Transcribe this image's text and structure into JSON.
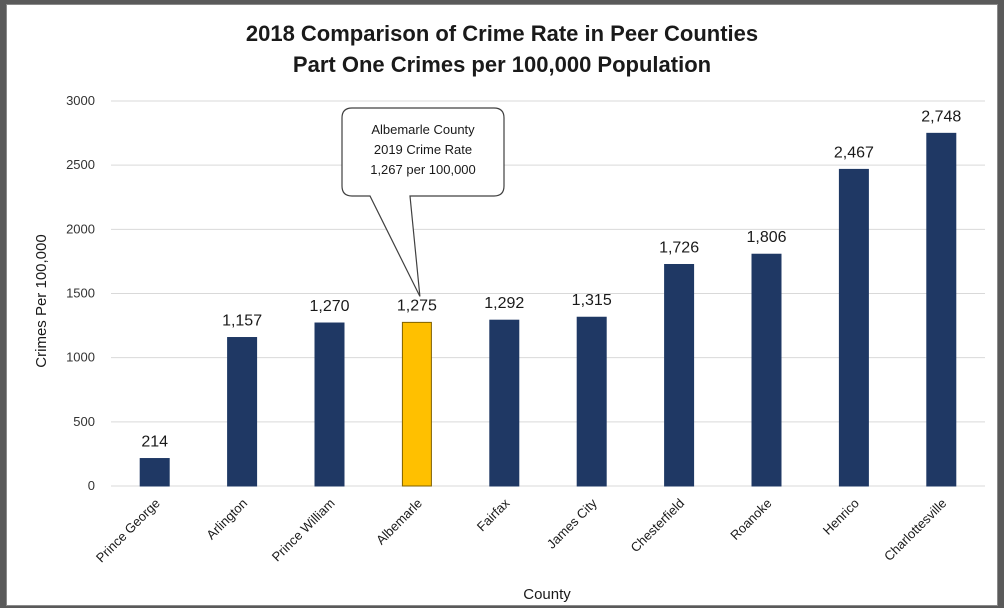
{
  "chart_data": {
    "type": "bar",
    "title": "2018 Comparison of Crime Rate in Peer Counties",
    "subtitle": "Part One Crimes per 100,000 Population",
    "xlabel": "County",
    "ylabel": "Crimes Per 100,000",
    "ylim": [
      0,
      3000
    ],
    "yticks": [
      "0",
      "500",
      "1000",
      "1500",
      "2000",
      "2500",
      "3000"
    ],
    "grid": true,
    "legend": "none",
    "categories": [
      "Prince George",
      "Arlington",
      "Prince William",
      "Albemarle",
      "Fairfax",
      "James City",
      "Chesterfield",
      "Roanoke",
      "Henrico",
      "Charlottesville"
    ],
    "values": [
      214,
      1157,
      1270,
      1275,
      1292,
      1315,
      1726,
      1806,
      2467,
      2748
    ],
    "value_labels": [
      "214",
      "1,157",
      "1,270",
      "1,275",
      "1,292",
      "1,315",
      "1,726",
      "1,806",
      "2,467",
      "2,748"
    ],
    "highlight_index": 3,
    "colors": {
      "bar": "#1f3864",
      "highlight": "#ffc000",
      "grid": "#d9d9d9"
    },
    "annotation": {
      "target": "Albemarle",
      "lines": [
        "Albemarle County",
        "2019 Crime Rate",
        "1,267 per 100,000"
      ]
    }
  }
}
